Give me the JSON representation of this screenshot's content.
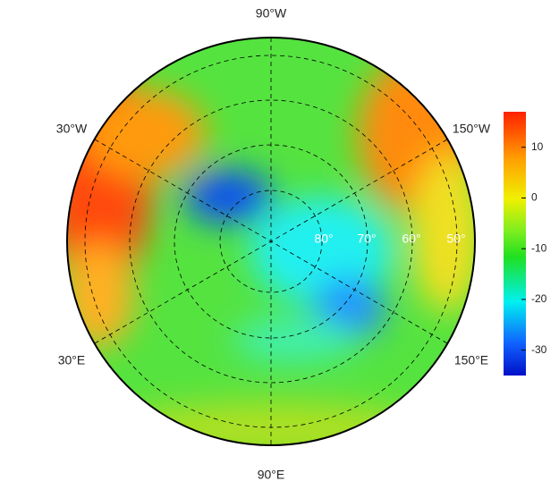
{
  "map": {
    "meridian_labels": [
      "90°W",
      "30°W",
      "150°W",
      "30°E",
      "150°E",
      "90°E"
    ],
    "parallel_labels": [
      "80°",
      "70°",
      "60°",
      "50°"
    ],
    "colorbar": {
      "lim": [
        -35,
        17
      ],
      "ticks": [
        10,
        0,
        -10,
        -20,
        -30
      ]
    }
  }
}
